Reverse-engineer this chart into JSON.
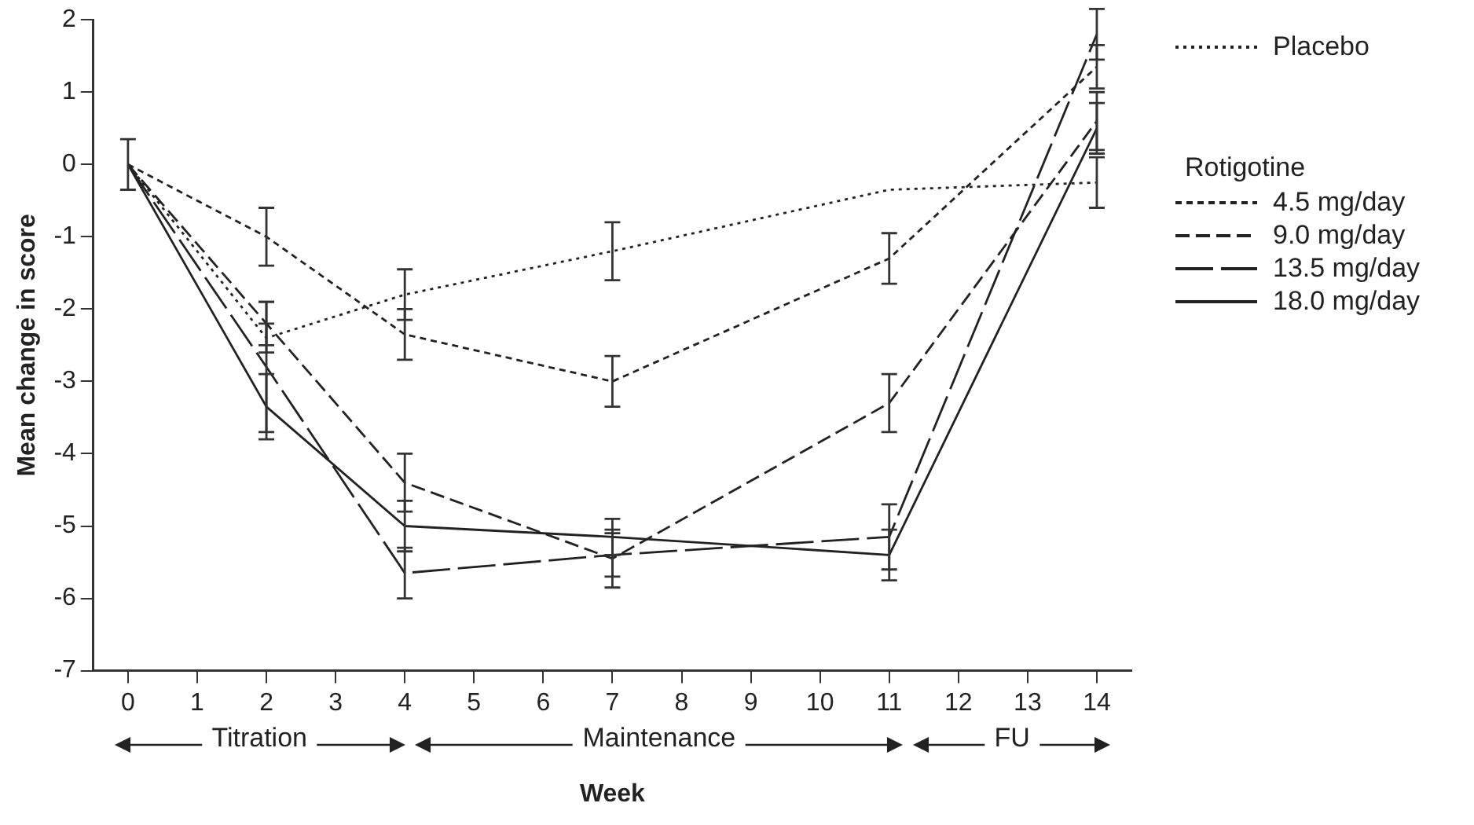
{
  "chart_data": {
    "type": "line",
    "xlabel": "Week",
    "ylabel": "Mean change in score",
    "x": [
      0,
      2,
      4,
      7,
      11,
      14
    ],
    "xlim": [
      -0.5,
      14.5
    ],
    "xticks": [
      0,
      1,
      2,
      3,
      4,
      5,
      6,
      7,
      8,
      9,
      10,
      11,
      12,
      13,
      14
    ],
    "ylim": [
      -7,
      2
    ],
    "yticks": [
      -7,
      -6,
      -5,
      -4,
      -3,
      -2,
      -1,
      0,
      1,
      2
    ],
    "grid": false,
    "marker": "none",
    "legend": "right",
    "annotations": [
      "Rotigotine",
      "Titration",
      "Maintenance",
      "FU"
    ],
    "series": [
      {
        "name": "Placebo",
        "color": "#222222",
        "line_style": "dotted",
        "values": [
          0,
          -2.4,
          -1.8,
          -1.2,
          -0.35,
          -0.25
        ],
        "errors": [
          0.35,
          0.2,
          0.35,
          0.4,
          null,
          0.35
        ]
      },
      {
        "name": "4.5 mg/day",
        "color": "#222222",
        "line_style": "dashed",
        "values": [
          0,
          -1,
          -2.35,
          -3,
          -1.3,
          1.35
        ],
        "errors": [
          null,
          0.4,
          0.35,
          0.35,
          0.35,
          0.3
        ]
      },
      {
        "name": "9.0 mg/day",
        "color": "#222222",
        "line_style": "dashed",
        "values": [
          0,
          -2.2,
          -4.4,
          -5.45,
          -3.3,
          0.6
        ],
        "errors": [
          null,
          0.3,
          0.4,
          0.4,
          0.4,
          0.4
        ]
      },
      {
        "name": "13.5 mg/day",
        "color": "#222222",
        "line_style": "dashed",
        "values": [
          0,
          -2.8,
          -5.65,
          -5.4,
          -5.15,
          1.8
        ],
        "errors": [
          null,
          0.9,
          0.35,
          0.3,
          0.45,
          0.35
        ]
      },
      {
        "name": "18.0 mg/day",
        "color": "#222222",
        "line_style": "solid",
        "values": [
          0,
          -3.35,
          -5,
          -5.15,
          -5.4,
          0.5
        ],
        "errors": [
          null,
          0.45,
          0.35,
          0.25,
          0.35,
          0.35
        ]
      }
    ]
  }
}
